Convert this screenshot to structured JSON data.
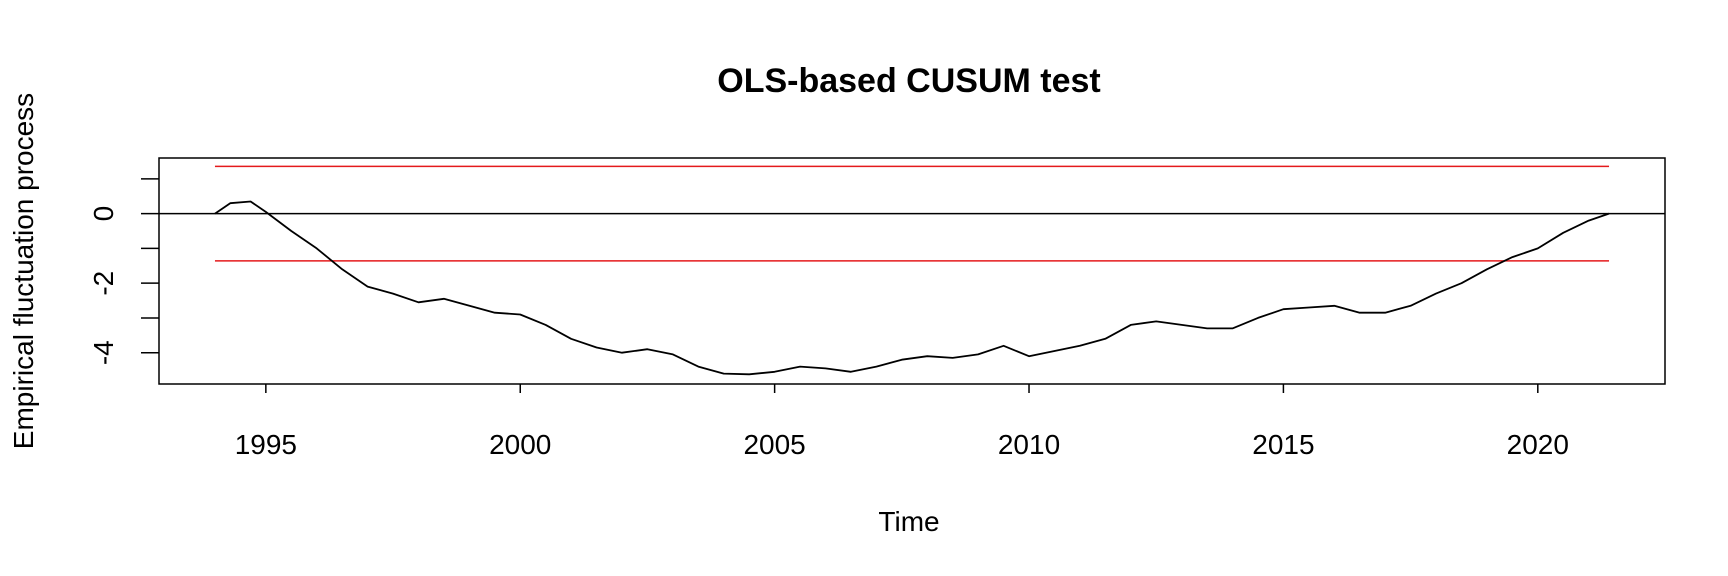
{
  "chart_data": {
    "type": "line",
    "title": "OLS-based CUSUM test",
    "xlabel": "Time",
    "ylabel": "Empirical fluctuation process",
    "xlim": [
      1992.9,
      2022.5
    ],
    "ylim": [
      -4.9,
      1.6
    ],
    "x_ticks": [
      1995,
      2000,
      2005,
      2010,
      2015,
      2020
    ],
    "x_tick_labels": [
      "1995",
      "2000",
      "2005",
      "2010",
      "2015",
      "2020"
    ],
    "y_ticks": [
      -4,
      -3,
      -2,
      -1,
      0,
      1
    ],
    "y_tick_labels": [
      "-4",
      "",
      "-2",
      "",
      "0",
      ""
    ],
    "reference_line": {
      "y": 0,
      "color": "#000000"
    },
    "boundaries": [
      {
        "name": "upper boundary",
        "x": [
          1994.0,
          2021.4
        ],
        "y": [
          1.36,
          1.36
        ],
        "color": "#e41a1c"
      },
      {
        "name": "lower boundary",
        "x": [
          1994.0,
          2021.4
        ],
        "y": [
          -1.36,
          -1.36
        ],
        "color": "#e41a1c"
      }
    ],
    "series": [
      {
        "name": "Empirical fluctuation process",
        "color": "#000000",
        "x": [
          1994.0,
          1994.3,
          1994.7,
          1995.0,
          1995.5,
          1996.0,
          1996.5,
          1997.0,
          1997.5,
          1998.0,
          1998.5,
          1999.0,
          1999.5,
          2000.0,
          2000.5,
          2001.0,
          2001.5,
          2002.0,
          2002.5,
          2003.0,
          2003.5,
          2004.0,
          2004.5,
          2005.0,
          2005.5,
          2006.0,
          2006.5,
          2007.0,
          2007.5,
          2008.0,
          2008.5,
          2009.0,
          2009.5,
          2010.0,
          2010.5,
          2011.0,
          2011.5,
          2012.0,
          2012.5,
          2013.0,
          2013.5,
          2014.0,
          2014.5,
          2015.0,
          2015.5,
          2016.0,
          2016.5,
          2017.0,
          2017.5,
          2018.0,
          2018.5,
          2019.0,
          2019.5,
          2020.0,
          2020.5,
          2021.0,
          2021.4
        ],
        "y": [
          0.0,
          0.3,
          0.35,
          0.05,
          -0.5,
          -1.0,
          -1.6,
          -2.1,
          -2.3,
          -2.55,
          -2.45,
          -2.65,
          -2.85,
          -2.9,
          -3.2,
          -3.6,
          -3.85,
          -4.0,
          -3.9,
          -4.05,
          -4.4,
          -4.6,
          -4.62,
          -4.55,
          -4.4,
          -4.45,
          -4.55,
          -4.4,
          -4.2,
          -4.1,
          -4.15,
          -4.05,
          -3.8,
          -4.1,
          -3.95,
          -3.8,
          -3.6,
          -3.2,
          -3.1,
          -3.2,
          -3.3,
          -3.3,
          -3.0,
          -2.75,
          -2.7,
          -2.65,
          -2.85,
          -2.85,
          -2.65,
          -2.3,
          -2.0,
          -1.6,
          -1.25,
          -1.0,
          -0.55,
          -0.2,
          0.0
        ]
      }
    ]
  }
}
